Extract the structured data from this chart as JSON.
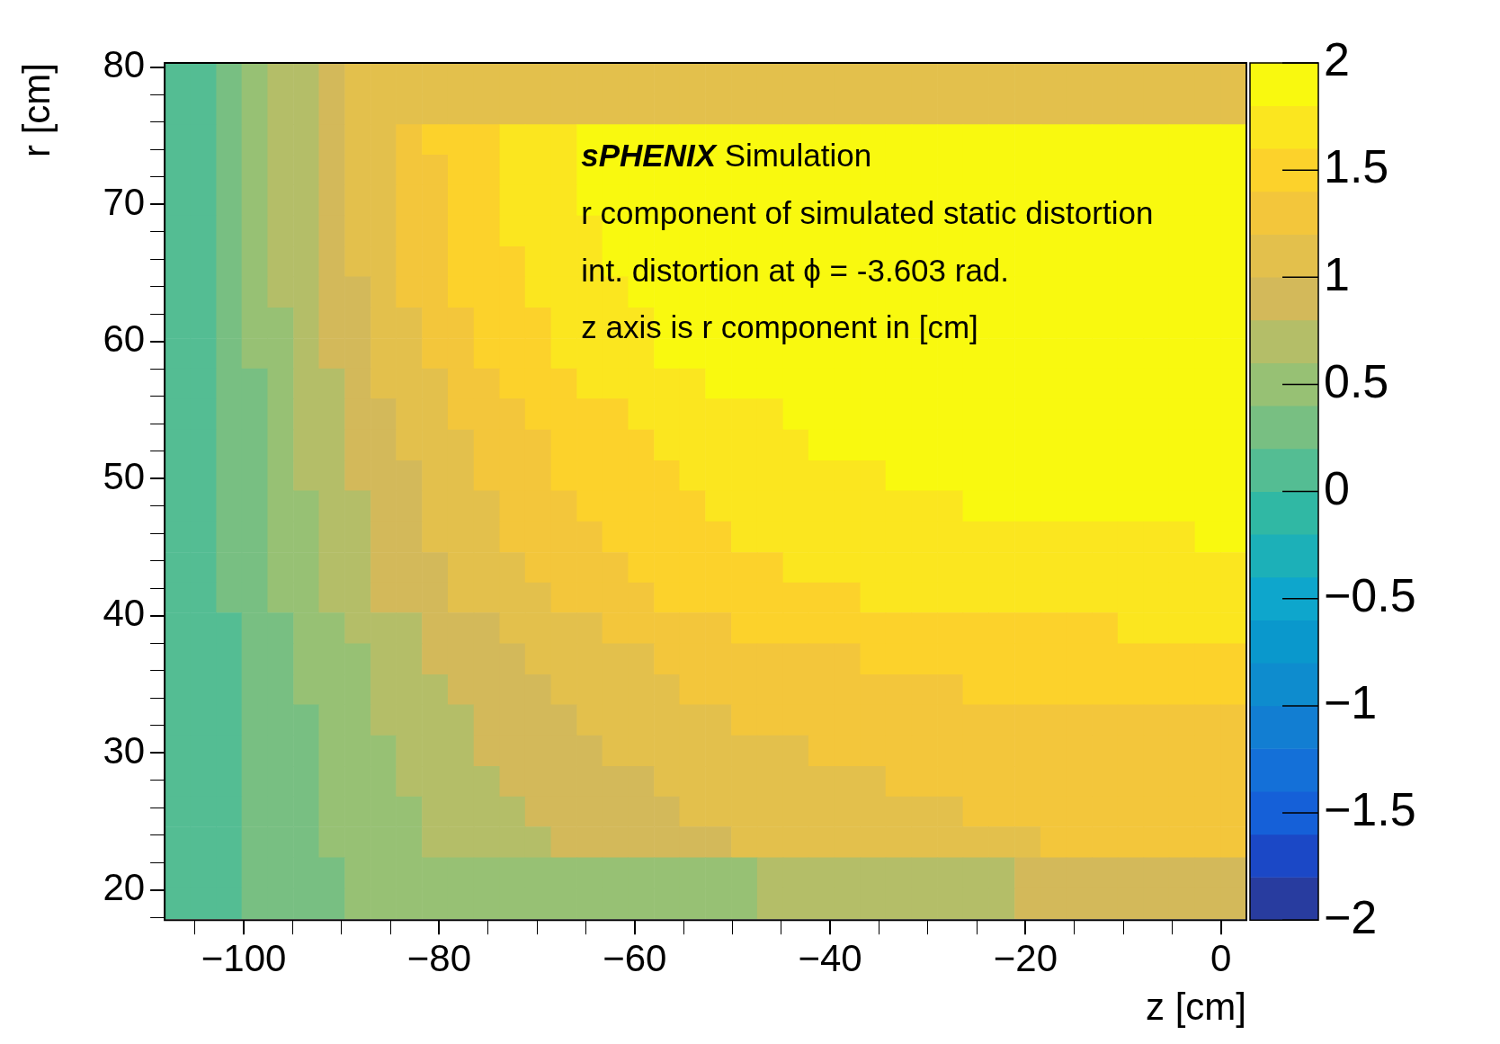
{
  "chart_data": {
    "type": "heatmap",
    "xlabel": "z [cm]",
    "ylabel": "r [cm]",
    "annotations": [
      "sPHENIX Simulation",
      "r component of simulated static distortion",
      "int. distortion at ϕ = -3.603 rad.",
      "z axis is r component in [cm]"
    ],
    "x": [
      -106.8,
      -104.1,
      -101.5,
      -98.9,
      -96.2,
      -93.6,
      -91.0,
      -88.3,
      -85.7,
      -83.1,
      -80.4,
      -77.8,
      -75.1,
      -72.5,
      -69.9,
      -67.2,
      -64.6,
      -62.0,
      -59.3,
      -56.7,
      -54.1,
      -51.4,
      -48.8,
      -46.1,
      -43.5,
      -40.9,
      -38.2,
      -35.6,
      -33.0,
      -30.3,
      -27.7,
      -25.1,
      -22.4,
      -19.8,
      -17.1,
      -14.5,
      -11.9,
      -9.2,
      -6.6,
      -4.0,
      -1.3,
      1.3
    ],
    "y": [
      79.2,
      76.9,
      74.7,
      72.5,
      70.3,
      68.0,
      65.8,
      63.6,
      61.3,
      59.1,
      56.9,
      54.7,
      52.4,
      50.2,
      48.0,
      45.7,
      43.5,
      41.3,
      39.1,
      36.8,
      34.6,
      32.4,
      30.1,
      27.9,
      25.7,
      23.5,
      21.2,
      19.0
    ],
    "cells": [
      [
        0.1,
        0.1,
        0.3,
        0.5,
        0.7,
        0.7,
        0.9,
        1.1,
        1.1,
        1.1,
        1.1,
        1.1,
        1.1,
        1.1,
        1.1,
        1.1,
        1.1,
        1.1,
        1.1,
        1.1,
        1.1,
        1.1,
        1.1,
        1.1,
        1.1,
        1.1,
        1.1,
        1.1,
        1.1,
        1.1,
        1.1,
        1.1,
        1.1,
        1.1,
        1.1,
        1.1,
        1.1,
        1.1,
        1.1,
        1.1,
        1.1,
        1.1
      ],
      [
        0.1,
        0.1,
        0.3,
        0.5,
        0.7,
        0.7,
        0.9,
        1.1,
        1.1,
        1.1,
        1.1,
        1.1,
        1.1,
        1.1,
        1.1,
        1.1,
        1.1,
        1.1,
        1.1,
        1.1,
        1.1,
        1.1,
        1.1,
        1.1,
        1.1,
        1.1,
        1.1,
        1.1,
        1.1,
        1.1,
        1.1,
        1.1,
        1.1,
        1.1,
        1.1,
        1.1,
        1.1,
        1.1,
        1.1,
        1.1,
        1.1,
        1.1
      ],
      [
        0.1,
        0.1,
        0.3,
        0.5,
        0.7,
        0.7,
        0.9,
        1.1,
        1.1,
        1.3,
        1.5,
        1.5,
        1.5,
        1.7,
        1.7,
        1.7,
        1.9,
        1.9,
        1.9,
        1.9,
        1.9,
        1.9,
        1.9,
        1.9,
        1.9,
        1.9,
        1.9,
        1.9,
        1.9,
        1.9,
        1.9,
        1.9,
        1.9,
        1.9,
        1.9,
        1.9,
        1.9,
        1.9,
        1.9,
        1.9,
        1.9,
        1.9
      ],
      [
        0.1,
        0.1,
        0.3,
        0.5,
        0.7,
        0.7,
        0.9,
        1.1,
        1.1,
        1.3,
        1.3,
        1.5,
        1.5,
        1.7,
        1.7,
        1.7,
        1.9,
        1.9,
        1.9,
        1.9,
        1.9,
        1.9,
        1.9,
        1.9,
        1.9,
        1.9,
        1.9,
        1.9,
        1.9,
        1.9,
        1.9,
        1.9,
        1.9,
        1.9,
        1.9,
        1.9,
        1.9,
        1.9,
        1.9,
        1.9,
        1.9,
        1.9
      ],
      [
        0.1,
        0.1,
        0.3,
        0.5,
        0.7,
        0.7,
        0.9,
        1.1,
        1.1,
        1.3,
        1.3,
        1.5,
        1.5,
        1.7,
        1.7,
        1.7,
        1.9,
        1.9,
        1.9,
        1.9,
        1.9,
        1.9,
        1.9,
        1.9,
        1.9,
        1.9,
        1.9,
        1.9,
        1.9,
        1.9,
        1.9,
        1.9,
        1.9,
        1.9,
        1.9,
        1.9,
        1.9,
        1.9,
        1.9,
        1.9,
        1.9,
        1.9
      ],
      [
        0.1,
        0.1,
        0.3,
        0.5,
        0.7,
        0.7,
        0.9,
        1.1,
        1.1,
        1.3,
        1.3,
        1.5,
        1.5,
        1.7,
        1.7,
        1.7,
        1.7,
        1.9,
        1.9,
        1.9,
        1.9,
        1.9,
        1.9,
        1.9,
        1.9,
        1.9,
        1.9,
        1.9,
        1.9,
        1.9,
        1.9,
        1.9,
        1.9,
        1.9,
        1.9,
        1.9,
        1.9,
        1.9,
        1.9,
        1.9,
        1.9,
        1.9
      ],
      [
        0.1,
        0.1,
        0.3,
        0.5,
        0.7,
        0.7,
        0.9,
        1.1,
        1.1,
        1.3,
        1.3,
        1.5,
        1.5,
        1.5,
        1.7,
        1.7,
        1.7,
        1.9,
        1.9,
        1.9,
        1.9,
        1.9,
        1.9,
        1.9,
        1.9,
        1.9,
        1.9,
        1.9,
        1.9,
        1.9,
        1.9,
        1.9,
        1.9,
        1.9,
        1.9,
        1.9,
        1.9,
        1.9,
        1.9,
        1.9,
        1.9,
        1.9
      ],
      [
        0.1,
        0.1,
        0.3,
        0.5,
        0.7,
        0.7,
        0.9,
        0.9,
        1.1,
        1.3,
        1.3,
        1.5,
        1.5,
        1.5,
        1.7,
        1.7,
        1.7,
        1.7,
        1.9,
        1.9,
        1.9,
        1.9,
        1.9,
        1.9,
        1.9,
        1.9,
        1.9,
        1.9,
        1.9,
        1.9,
        1.9,
        1.9,
        1.9,
        1.9,
        1.9,
        1.9,
        1.9,
        1.9,
        1.9,
        1.9,
        1.9,
        1.9
      ],
      [
        0.1,
        0.1,
        0.3,
        0.5,
        0.5,
        0.7,
        0.9,
        0.9,
        1.1,
        1.1,
        1.3,
        1.3,
        1.5,
        1.5,
        1.5,
        1.7,
        1.7,
        1.7,
        1.7,
        1.9,
        1.9,
        1.9,
        1.9,
        1.9,
        1.9,
        1.9,
        1.9,
        1.9,
        1.9,
        1.9,
        1.9,
        1.9,
        1.9,
        1.9,
        1.9,
        1.9,
        1.9,
        1.9,
        1.9,
        1.9,
        1.9,
        1.9
      ],
      [
        0.1,
        0.1,
        0.3,
        0.5,
        0.5,
        0.7,
        0.9,
        0.9,
        1.1,
        1.1,
        1.3,
        1.3,
        1.5,
        1.5,
        1.5,
        1.7,
        1.7,
        1.7,
        1.7,
        1.9,
        1.9,
        1.9,
        1.9,
        1.9,
        1.9,
        1.9,
        1.9,
        1.9,
        1.9,
        1.9,
        1.9,
        1.9,
        1.9,
        1.9,
        1.9,
        1.9,
        1.9,
        1.9,
        1.9,
        1.9,
        1.9,
        1.9
      ],
      [
        0.1,
        0.1,
        0.3,
        0.3,
        0.5,
        0.7,
        0.7,
        0.9,
        1.1,
        1.1,
        1.1,
        1.3,
        1.3,
        1.5,
        1.5,
        1.5,
        1.7,
        1.7,
        1.7,
        1.7,
        1.7,
        1.9,
        1.9,
        1.9,
        1.9,
        1.9,
        1.9,
        1.9,
        1.9,
        1.9,
        1.9,
        1.9,
        1.9,
        1.9,
        1.9,
        1.9,
        1.9,
        1.9,
        1.9,
        1.9,
        1.9,
        1.9
      ],
      [
        0.1,
        0.1,
        0.3,
        0.3,
        0.5,
        0.7,
        0.7,
        0.9,
        0.9,
        1.1,
        1.1,
        1.3,
        1.3,
        1.3,
        1.5,
        1.5,
        1.5,
        1.5,
        1.7,
        1.7,
        1.7,
        1.7,
        1.7,
        1.7,
        1.9,
        1.9,
        1.9,
        1.9,
        1.9,
        1.9,
        1.9,
        1.9,
        1.9,
        1.9,
        1.9,
        1.9,
        1.9,
        1.9,
        1.9,
        1.9,
        1.9,
        1.9
      ],
      [
        0.1,
        0.1,
        0.3,
        0.3,
        0.5,
        0.7,
        0.7,
        0.9,
        0.9,
        1.1,
        1.1,
        1.1,
        1.3,
        1.3,
        1.3,
        1.5,
        1.5,
        1.5,
        1.5,
        1.7,
        1.7,
        1.7,
        1.7,
        1.7,
        1.7,
        1.9,
        1.9,
        1.9,
        1.9,
        1.9,
        1.9,
        1.9,
        1.9,
        1.9,
        1.9,
        1.9,
        1.9,
        1.9,
        1.9,
        1.9,
        1.9,
        1.9
      ],
      [
        0.1,
        0.1,
        0.3,
        0.3,
        0.5,
        0.7,
        0.7,
        0.9,
        0.9,
        0.9,
        1.1,
        1.1,
        1.3,
        1.3,
        1.3,
        1.5,
        1.5,
        1.5,
        1.5,
        1.5,
        1.7,
        1.7,
        1.7,
        1.7,
        1.7,
        1.7,
        1.7,
        1.7,
        1.9,
        1.9,
        1.9,
        1.9,
        1.9,
        1.9,
        1.9,
        1.9,
        1.9,
        1.9,
        1.9,
        1.9,
        1.9,
        1.9
      ],
      [
        0.1,
        0.1,
        0.3,
        0.3,
        0.5,
        0.5,
        0.7,
        0.7,
        0.9,
        0.9,
        1.1,
        1.1,
        1.1,
        1.3,
        1.3,
        1.3,
        1.5,
        1.5,
        1.5,
        1.5,
        1.5,
        1.7,
        1.7,
        1.7,
        1.7,
        1.7,
        1.7,
        1.7,
        1.7,
        1.7,
        1.7,
        1.9,
        1.9,
        1.9,
        1.9,
        1.9,
        1.9,
        1.9,
        1.9,
        1.9,
        1.9,
        1.9
      ],
      [
        0.1,
        0.1,
        0.3,
        0.3,
        0.5,
        0.5,
        0.7,
        0.7,
        0.9,
        0.9,
        1.1,
        1.1,
        1.1,
        1.3,
        1.3,
        1.3,
        1.3,
        1.5,
        1.5,
        1.5,
        1.5,
        1.5,
        1.7,
        1.7,
        1.7,
        1.7,
        1.7,
        1.7,
        1.7,
        1.7,
        1.7,
        1.7,
        1.7,
        1.7,
        1.7,
        1.7,
        1.7,
        1.7,
        1.7,
        1.7,
        1.9,
        1.9
      ],
      [
        0.1,
        0.1,
        0.3,
        0.3,
        0.5,
        0.5,
        0.7,
        0.7,
        0.9,
        0.9,
        0.9,
        1.1,
        1.1,
        1.1,
        1.3,
        1.3,
        1.3,
        1.3,
        1.5,
        1.5,
        1.5,
        1.5,
        1.5,
        1.5,
        1.7,
        1.7,
        1.7,
        1.7,
        1.7,
        1.7,
        1.7,
        1.7,
        1.7,
        1.7,
        1.7,
        1.7,
        1.7,
        1.7,
        1.7,
        1.7,
        1.7,
        1.7
      ],
      [
        0.1,
        0.1,
        0.3,
        0.3,
        0.5,
        0.5,
        0.7,
        0.7,
        0.9,
        0.9,
        0.9,
        1.1,
        1.1,
        1.1,
        1.1,
        1.3,
        1.3,
        1.3,
        1.3,
        1.5,
        1.5,
        1.5,
        1.5,
        1.5,
        1.5,
        1.5,
        1.5,
        1.7,
        1.7,
        1.7,
        1.7,
        1.7,
        1.7,
        1.7,
        1.7,
        1.7,
        1.7,
        1.7,
        1.7,
        1.7,
        1.7,
        1.7
      ],
      [
        0.1,
        0.1,
        0.1,
        0.3,
        0.3,
        0.5,
        0.5,
        0.7,
        0.7,
        0.7,
        0.9,
        0.9,
        0.9,
        1.1,
        1.1,
        1.1,
        1.1,
        1.3,
        1.3,
        1.3,
        1.3,
        1.3,
        1.5,
        1.5,
        1.5,
        1.5,
        1.5,
        1.5,
        1.5,
        1.5,
        1.5,
        1.5,
        1.5,
        1.5,
        1.5,
        1.5,
        1.5,
        1.7,
        1.7,
        1.7,
        1.7,
        1.7
      ],
      [
        0.1,
        0.1,
        0.1,
        0.3,
        0.3,
        0.5,
        0.5,
        0.5,
        0.7,
        0.7,
        0.9,
        0.9,
        0.9,
        0.9,
        1.1,
        1.1,
        1.1,
        1.1,
        1.1,
        1.3,
        1.3,
        1.3,
        1.3,
        1.3,
        1.3,
        1.3,
        1.3,
        1.5,
        1.5,
        1.5,
        1.5,
        1.5,
        1.5,
        1.5,
        1.5,
        1.5,
        1.5,
        1.5,
        1.5,
        1.5,
        1.5,
        1.5
      ],
      [
        0.1,
        0.1,
        0.1,
        0.3,
        0.3,
        0.5,
        0.5,
        0.5,
        0.7,
        0.7,
        0.7,
        0.9,
        0.9,
        0.9,
        0.9,
        1.1,
        1.1,
        1.1,
        1.1,
        1.1,
        1.3,
        1.3,
        1.3,
        1.3,
        1.3,
        1.3,
        1.3,
        1.3,
        1.3,
        1.3,
        1.3,
        1.5,
        1.5,
        1.5,
        1.5,
        1.5,
        1.5,
        1.5,
        1.5,
        1.5,
        1.5,
        1.5
      ],
      [
        0.1,
        0.1,
        0.1,
        0.3,
        0.3,
        0.3,
        0.5,
        0.5,
        0.7,
        0.7,
        0.7,
        0.7,
        0.9,
        0.9,
        0.9,
        0.9,
        1.1,
        1.1,
        1.1,
        1.1,
        1.1,
        1.1,
        1.3,
        1.3,
        1.3,
        1.3,
        1.3,
        1.3,
        1.3,
        1.3,
        1.3,
        1.3,
        1.3,
        1.3,
        1.3,
        1.3,
        1.3,
        1.3,
        1.3,
        1.3,
        1.3,
        1.3
      ],
      [
        0.1,
        0.1,
        0.1,
        0.3,
        0.3,
        0.3,
        0.5,
        0.5,
        0.5,
        0.7,
        0.7,
        0.7,
        0.9,
        0.9,
        0.9,
        0.9,
        0.9,
        1.1,
        1.1,
        1.1,
        1.1,
        1.1,
        1.1,
        1.1,
        1.1,
        1.3,
        1.3,
        1.3,
        1.3,
        1.3,
        1.3,
        1.3,
        1.3,
        1.3,
        1.3,
        1.3,
        1.3,
        1.3,
        1.3,
        1.3,
        1.3,
        1.3
      ],
      [
        0.1,
        0.1,
        0.1,
        0.3,
        0.3,
        0.3,
        0.5,
        0.5,
        0.5,
        0.7,
        0.7,
        0.7,
        0.7,
        0.9,
        0.9,
        0.9,
        0.9,
        0.9,
        0.9,
        1.1,
        1.1,
        1.1,
        1.1,
        1.1,
        1.1,
        1.1,
        1.1,
        1.1,
        1.3,
        1.3,
        1.3,
        1.3,
        1.3,
        1.3,
        1.3,
        1.3,
        1.3,
        1.3,
        1.3,
        1.3,
        1.3,
        1.3
      ],
      [
        0.1,
        0.1,
        0.1,
        0.3,
        0.3,
        0.3,
        0.5,
        0.5,
        0.5,
        0.5,
        0.7,
        0.7,
        0.7,
        0.7,
        0.9,
        0.9,
        0.9,
        0.9,
        0.9,
        0.9,
        1.1,
        1.1,
        1.1,
        1.1,
        1.1,
        1.1,
        1.1,
        1.1,
        1.1,
        1.1,
        1.1,
        1.3,
        1.3,
        1.3,
        1.3,
        1.3,
        1.3,
        1.3,
        1.3,
        1.3,
        1.3,
        1.3
      ],
      [
        0.1,
        0.1,
        0.1,
        0.3,
        0.3,
        0.3,
        0.5,
        0.5,
        0.5,
        0.5,
        0.7,
        0.7,
        0.7,
        0.7,
        0.7,
        0.9,
        0.9,
        0.9,
        0.9,
        0.9,
        0.9,
        0.9,
        1.1,
        1.1,
        1.1,
        1.1,
        1.1,
        1.1,
        1.1,
        1.1,
        1.1,
        1.1,
        1.1,
        1.1,
        1.3,
        1.3,
        1.3,
        1.3,
        1.3,
        1.3,
        1.3,
        1.3
      ],
      [
        0.1,
        0.1,
        0.1,
        0.3,
        0.3,
        0.3,
        0.3,
        0.5,
        0.5,
        0.5,
        0.5,
        0.5,
        0.5,
        0.5,
        0.5,
        0.5,
        0.5,
        0.5,
        0.5,
        0.5,
        0.5,
        0.5,
        0.5,
        0.7,
        0.7,
        0.7,
        0.7,
        0.7,
        0.7,
        0.7,
        0.7,
        0.7,
        0.7,
        0.9,
        0.9,
        0.9,
        0.9,
        0.9,
        0.9,
        0.9,
        0.9,
        0.9
      ],
      [
        0.1,
        0.1,
        0.1,
        0.3,
        0.3,
        0.3,
        0.3,
        0.5,
        0.5,
        0.5,
        0.5,
        0.5,
        0.5,
        0.5,
        0.5,
        0.5,
        0.5,
        0.5,
        0.5,
        0.5,
        0.5,
        0.5,
        0.5,
        0.7,
        0.7,
        0.7,
        0.7,
        0.7,
        0.7,
        0.7,
        0.7,
        0.7,
        0.7,
        0.9,
        0.9,
        0.9,
        0.9,
        0.9,
        0.9,
        0.9,
        0.9,
        0.9
      ]
    ],
    "xlim": [
      -108.1,
      2.6
    ],
    "ylim": [
      17.8,
      80.3
    ],
    "xticks": [
      {
        "value": -105,
        "label": null
      },
      -100,
      {
        "value": -95,
        "label": null
      },
      {
        "value": -90,
        "label": null
      },
      {
        "value": -85,
        "label": null
      },
      -80,
      {
        "value": -75,
        "label": null
      },
      {
        "value": -70,
        "label": null
      },
      {
        "value": -65,
        "label": null
      },
      -60,
      {
        "value": -55,
        "label": null
      },
      {
        "value": -50,
        "label": null
      },
      {
        "value": -45,
        "label": null
      },
      -40,
      {
        "value": -35,
        "label": null
      },
      {
        "value": -30,
        "label": null
      },
      {
        "value": -25,
        "label": null
      },
      -20,
      {
        "value": -15,
        "label": null
      },
      {
        "value": -10,
        "label": null
      },
      {
        "value": -5,
        "label": null
      },
      0
    ],
    "yticks": [
      {
        "value": 18,
        "label": null
      },
      20,
      {
        "value": 22,
        "label": null
      },
      {
        "value": 24,
        "label": null
      },
      {
        "value": 26,
        "label": null
      },
      {
        "value": 28,
        "label": null
      },
      30,
      {
        "value": 32,
        "label": null
      },
      {
        "value": 34,
        "label": null
      },
      {
        "value": 36,
        "label": null
      },
      {
        "value": 38,
        "label": null
      },
      40,
      {
        "value": 42,
        "label": null
      },
      {
        "value": 44,
        "label": null
      },
      {
        "value": 46,
        "label": null
      },
      {
        "value": 48,
        "label": null
      },
      50,
      {
        "value": 52,
        "label": null
      },
      {
        "value": 54,
        "label": null
      },
      {
        "value": 56,
        "label": null
      },
      {
        "value": 58,
        "label": null
      },
      60,
      {
        "value": 62,
        "label": null
      },
      {
        "value": 64,
        "label": null
      },
      {
        "value": 66,
        "label": null
      },
      {
        "value": 68,
        "label": null
      },
      70,
      {
        "value": 72,
        "label": null
      },
      {
        "value": 74,
        "label": null
      },
      {
        "value": 76,
        "label": null
      },
      {
        "value": 78,
        "label": null
      },
      80
    ],
    "clim": [
      -2,
      2
    ],
    "cticks": [
      -2,
      -1.5,
      -1,
      -0.5,
      0,
      0.5,
      1,
      1.5,
      2
    ],
    "colors": [
      "#283c9f",
      "#1b48c6",
      "#1560d8",
      "#1470d8",
      "#127ed2",
      "#0e8cce",
      "#0a98cc",
      "#0ea6cc",
      "#1cb0b8",
      "#30b8a4",
      "#54bd93",
      "#78bf82",
      "#97c174",
      "#b4be68",
      "#d3b95a",
      "#e3c04c",
      "#f3c63b",
      "#fcd22b",
      "#fbe61f",
      "#f9f90f"
    ]
  }
}
